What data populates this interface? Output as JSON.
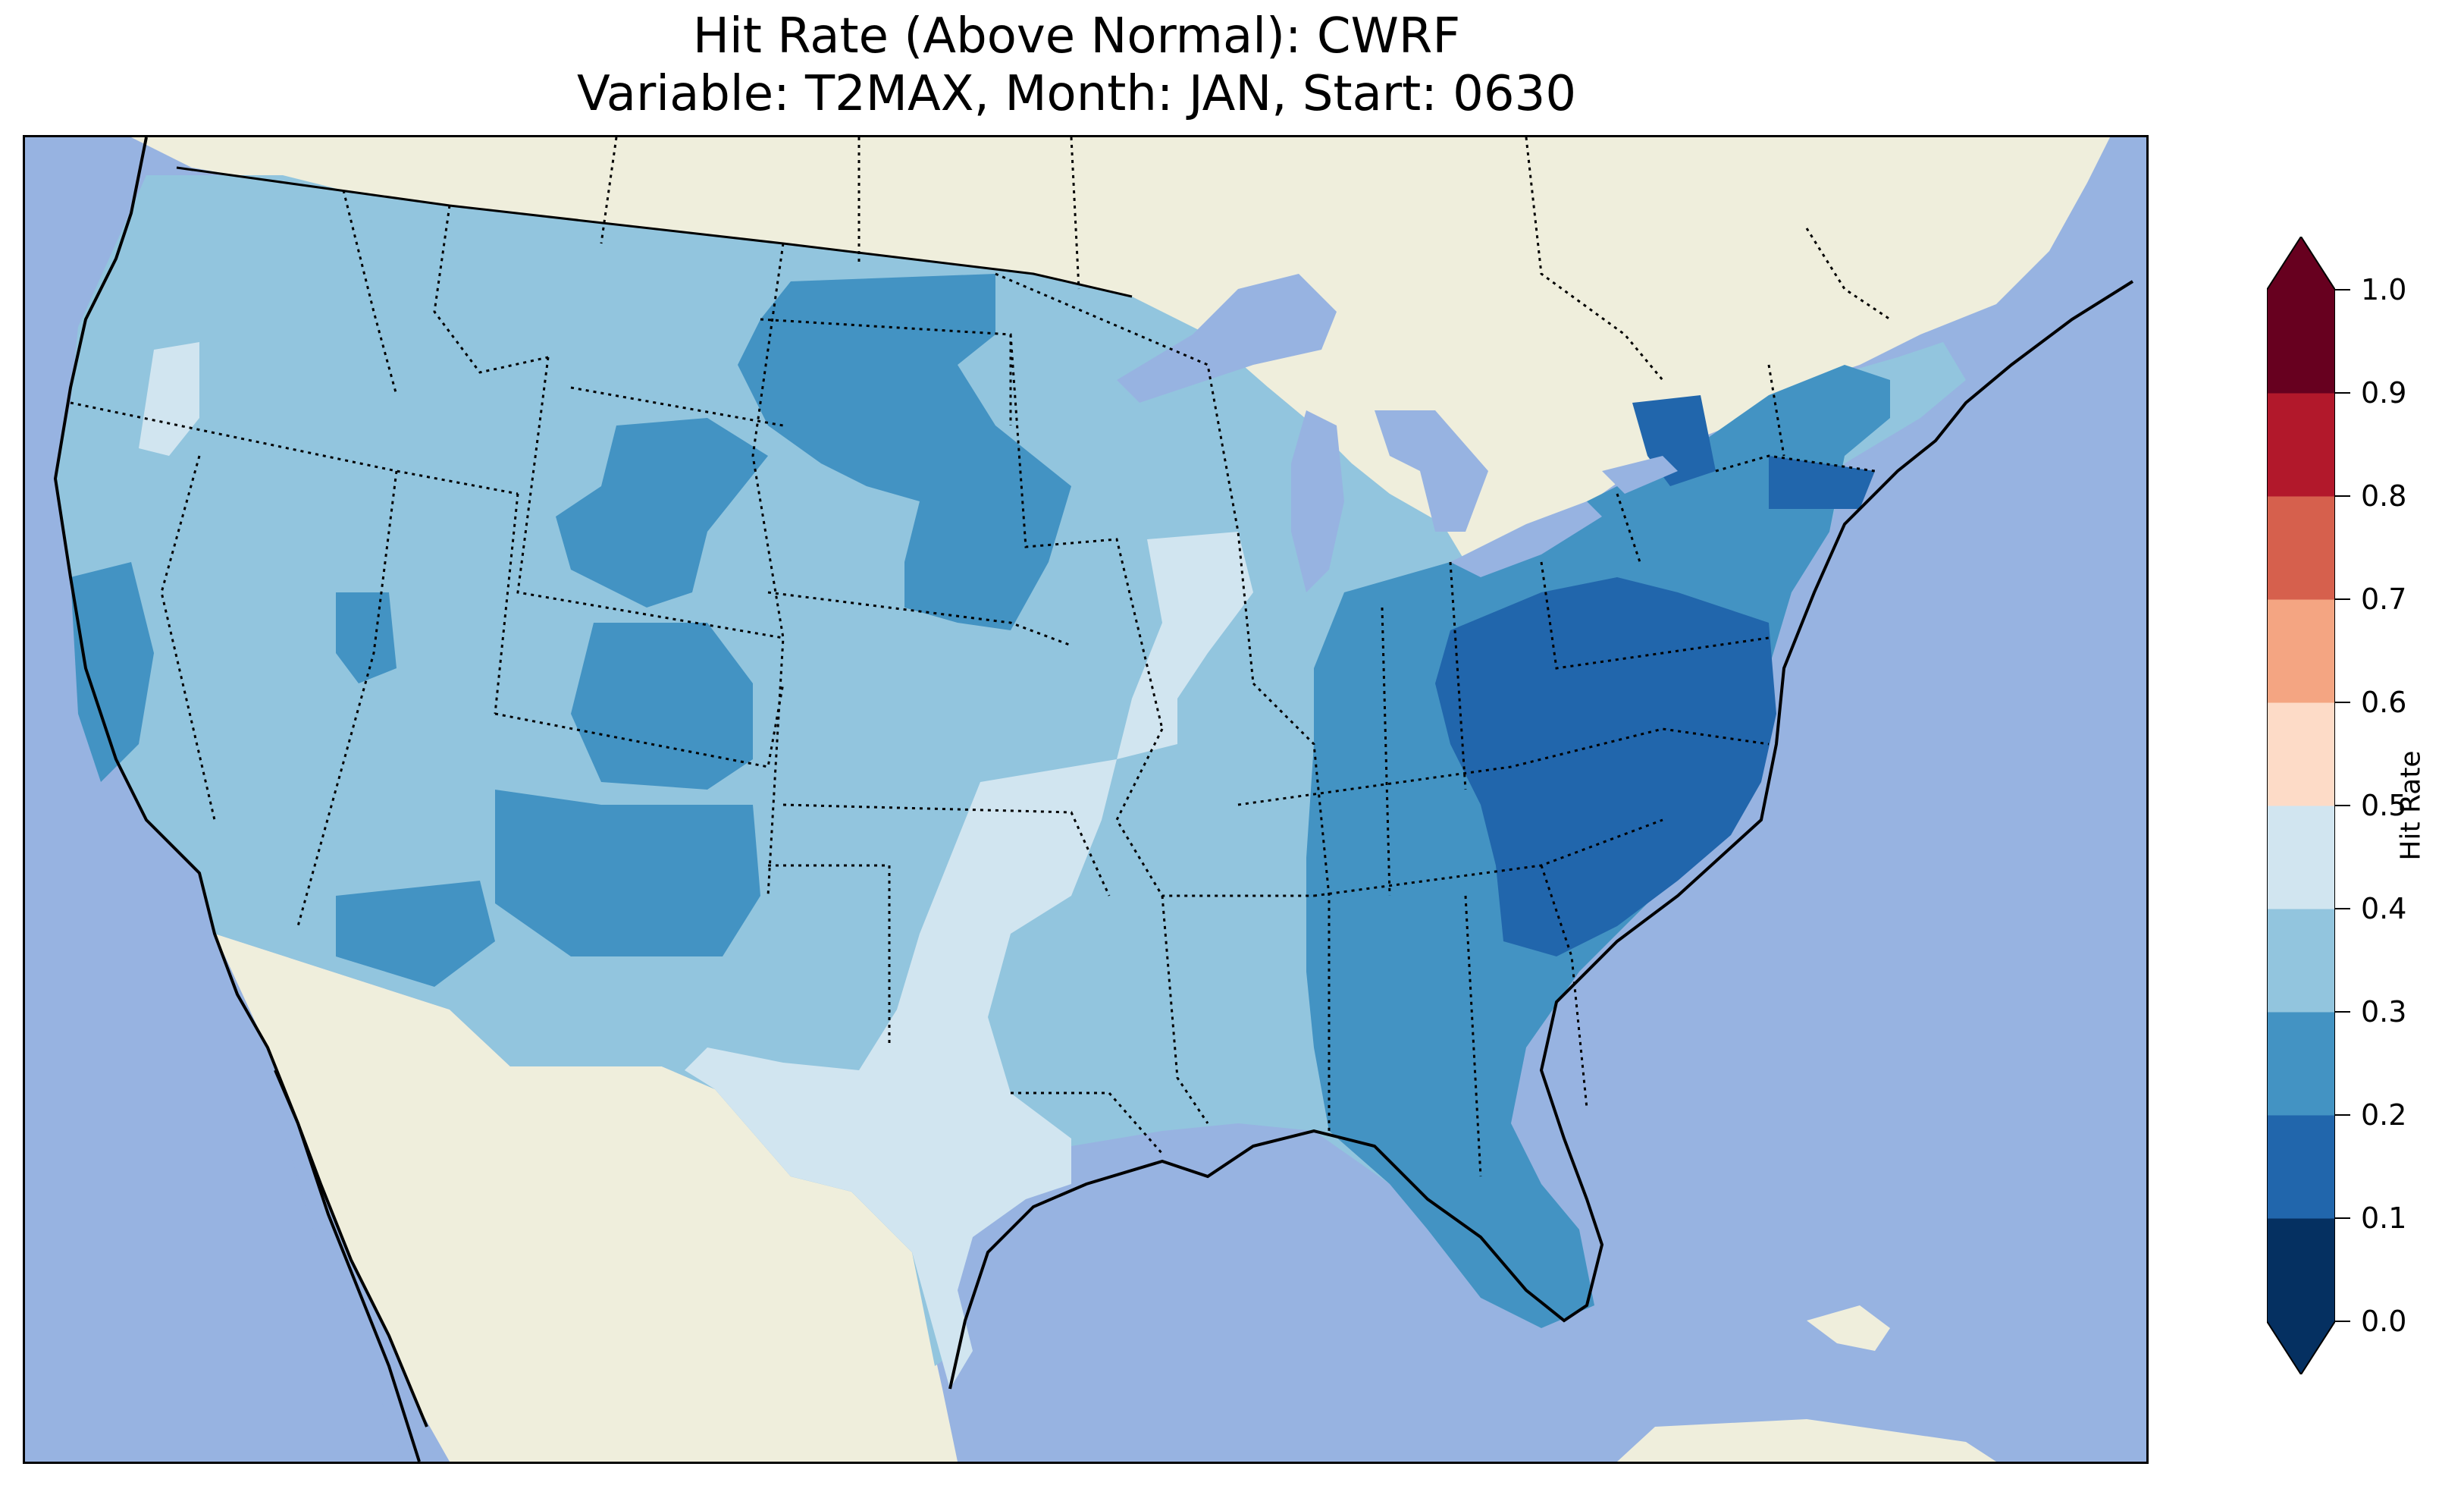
{
  "title": {
    "line1": "Hit Rate (Above Normal): CWRF",
    "line2": "Variable: T2MAX, Month: JAN, Start: 0630"
  },
  "colors": {
    "ocean": "#97b3e1",
    "land": "#efeedc",
    "lake": "#97b3e1"
  },
  "colorbar": {
    "label": "Hit Rate",
    "ticks": [
      "0.0",
      "0.1",
      "0.2",
      "0.3",
      "0.4",
      "0.5",
      "0.6",
      "0.7",
      "0.8",
      "0.9",
      "1.0"
    ],
    "bins": [
      {
        "range": [
          0.0,
          0.1
        ],
        "color": "#053061"
      },
      {
        "range": [
          0.1,
          0.2
        ],
        "color": "#2166ac"
      },
      {
        "range": [
          0.2,
          0.3
        ],
        "color": "#4393c3"
      },
      {
        "range": [
          0.3,
          0.4
        ],
        "color": "#92c5de"
      },
      {
        "range": [
          0.4,
          0.5
        ],
        "color": "#d1e5f0"
      },
      {
        "range": [
          0.5,
          0.6
        ],
        "color": "#fddbc7"
      },
      {
        "range": [
          0.6,
          0.7
        ],
        "color": "#f4a582"
      },
      {
        "range": [
          0.7,
          0.8
        ],
        "color": "#d6604d"
      },
      {
        "range": [
          0.8,
          0.9
        ],
        "color": "#b2182b"
      },
      {
        "range": [
          0.9,
          1.0
        ],
        "color": "#67001f"
      }
    ],
    "extend": "both"
  },
  "map_data": {
    "region": "Contiguous United States",
    "field_colors": {
      "0.2-0.3": "#4393c3",
      "0.1-0.2": "#2166ac",
      "0.3-0.4": "#92c5de",
      "0.4-0.5": "#d1e5f0"
    }
  }
}
